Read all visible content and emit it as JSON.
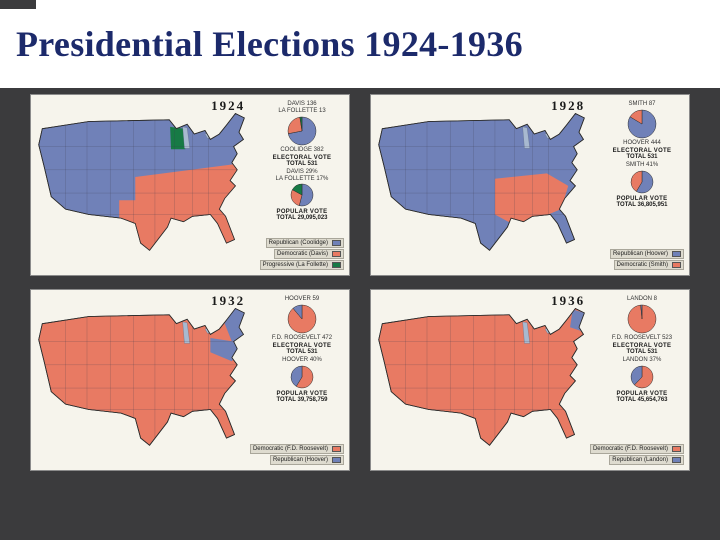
{
  "slide": {
    "title": "Presidential Elections 1924-1936",
    "title_color": "#1c2a6b",
    "background": "#3b3b3d"
  },
  "colors": {
    "republican": "#7081b8",
    "democratic": "#e87a63",
    "progressive": "#177a45",
    "panel_background": "#f6f4ec"
  },
  "panels": [
    {
      "year": "1924",
      "base_party": "republican",
      "regions": [
        {
          "shape": "south-1924",
          "party": "democratic"
        },
        {
          "shape": "wisconsin",
          "party": "progressive"
        }
      ],
      "electoral": {
        "heading": "ELECTORAL VOTE",
        "total": "TOTAL 531",
        "slices": [
          {
            "label": "COOLIDGE",
            "value": 382,
            "party": "republican"
          },
          {
            "label": "DAVIS",
            "value": 136,
            "party": "democratic"
          },
          {
            "label": "LA FOLLETTE",
            "value": 13,
            "party": "progressive"
          }
        ]
      },
      "popular": {
        "heading": "POPULAR VOTE",
        "total": "TOTAL 29,095,023",
        "slices": [
          {
            "label": "COOLIDGE",
            "value": "54%",
            "party": "republican"
          },
          {
            "label": "DAVIS",
            "value": "29%",
            "party": "democratic"
          },
          {
            "label": "LA FOLLETTE",
            "value": "17%",
            "party": "progressive"
          }
        ]
      },
      "legend": [
        {
          "label": "Republican (Coolidge)",
          "party": "republican"
        },
        {
          "label": "Democratic (Davis)",
          "party": "democratic"
        },
        {
          "label": "Progressive (La Follette)",
          "party": "progressive"
        }
      ]
    },
    {
      "year": "1928",
      "base_party": "republican",
      "regions": [
        {
          "shape": "south-1928",
          "party": "democratic"
        }
      ],
      "electoral": {
        "heading": "ELECTORAL VOTE",
        "total": "TOTAL 531",
        "slices": [
          {
            "label": "HOOVER",
            "value": 444,
            "party": "republican"
          },
          {
            "label": "SMITH",
            "value": 87,
            "party": "democratic"
          }
        ]
      },
      "popular": {
        "heading": "POPULAR VOTE",
        "total": "TOTAL 36,805,951",
        "slices": [
          {
            "label": "HOOVER",
            "value": "58%",
            "party": "republican"
          },
          {
            "label": "SMITH",
            "value": "41%",
            "party": "democratic"
          }
        ]
      },
      "legend": [
        {
          "label": "Republican (Hoover)",
          "party": "republican"
        },
        {
          "label": "Democratic (Smith)",
          "party": "democratic"
        }
      ]
    },
    {
      "year": "1932",
      "base_party": "democratic",
      "regions": [
        {
          "shape": "new-england-1932",
          "party": "republican"
        },
        {
          "shape": "mid-atlantic-1932",
          "party": "republican"
        }
      ],
      "electoral": {
        "heading": "ELECTORAL VOTE",
        "total": "TOTAL 531",
        "slices": [
          {
            "label": "F.D. ROOSEVELT",
            "value": 472,
            "party": "democratic"
          },
          {
            "label": "HOOVER",
            "value": 59,
            "party": "republican"
          }
        ]
      },
      "popular": {
        "heading": "POPULAR VOTE",
        "total": "TOTAL 39,758,759",
        "slices": [
          {
            "label": "F.D. ROOSEVELT",
            "value": "57%",
            "party": "democratic"
          },
          {
            "label": "HOOVER",
            "value": "40%",
            "party": "republican"
          }
        ]
      },
      "legend": [
        {
          "label": "Democratic (F.D. Roosevelt)",
          "party": "democratic"
        },
        {
          "label": "Republican (Hoover)",
          "party": "republican"
        }
      ]
    },
    {
      "year": "1936",
      "base_party": "democratic",
      "regions": [
        {
          "shape": "maine-vermont-1936",
          "party": "republican"
        }
      ],
      "electoral": {
        "heading": "ELECTORAL VOTE",
        "total": "TOTAL 531",
        "slices": [
          {
            "label": "F.D. ROOSEVELT",
            "value": 523,
            "party": "democratic"
          },
          {
            "label": "LANDON",
            "value": 8,
            "party": "republican"
          }
        ]
      },
      "popular": {
        "heading": "POPULAR VOTE",
        "total": "TOTAL 45,654,763",
        "slices": [
          {
            "label": "F.D. ROOSEVELT",
            "value": "61%",
            "party": "democratic"
          },
          {
            "label": "LANDON",
            "value": "37%",
            "party": "republican"
          }
        ]
      },
      "legend": [
        {
          "label": "Democratic (F.D. Roosevelt)",
          "party": "democratic"
        },
        {
          "label": "Republican (Landon)",
          "party": "republican"
        }
      ]
    }
  ],
  "chart_data": [
    {
      "type": "pie",
      "title": "1924 Electoral Vote",
      "total_label": "TOTAL 531",
      "labels": [
        "Coolidge (Republican)",
        "Davis (Democratic)",
        "La Follette (Progressive)"
      ],
      "values": [
        382,
        136,
        13
      ],
      "colors": [
        "#7081b8",
        "#e87a63",
        "#177a45"
      ]
    },
    {
      "type": "pie",
      "title": "1924 Popular Vote",
      "total_label": "TOTAL 29,095,023",
      "labels": [
        "Coolidge (Republican)",
        "Davis (Democratic)",
        "La Follette (Progressive)"
      ],
      "values": [
        54,
        29,
        17
      ],
      "unit": "%"
    },
    {
      "type": "pie",
      "title": "1928 Electoral Vote",
      "total_label": "TOTAL 531",
      "labels": [
        "Hoover (Republican)",
        "Smith (Democratic)"
      ],
      "values": [
        444,
        87
      ],
      "colors": [
        "#7081b8",
        "#e87a63"
      ]
    },
    {
      "type": "pie",
      "title": "1928 Popular Vote",
      "total_label": "TOTAL 36,805,951",
      "labels": [
        "Hoover (Republican)",
        "Smith (Democratic)"
      ],
      "values": [
        58,
        41
      ],
      "unit": "%"
    },
    {
      "type": "pie",
      "title": "1932 Electoral Vote",
      "total_label": "TOTAL 531",
      "labels": [
        "F.D. Roosevelt (Democratic)",
        "Hoover (Republican)"
      ],
      "values": [
        472,
        59
      ],
      "colors": [
        "#e87a63",
        "#7081b8"
      ]
    },
    {
      "type": "pie",
      "title": "1932 Popular Vote",
      "total_label": "TOTAL 39,758,759",
      "labels": [
        "F.D. Roosevelt (Democratic)",
        "Hoover (Republican)"
      ],
      "values": [
        57,
        40
      ],
      "unit": "%"
    },
    {
      "type": "pie",
      "title": "1936 Electoral Vote",
      "total_label": "TOTAL 531",
      "labels": [
        "F.D. Roosevelt (Democratic)",
        "Landon (Republican)"
      ],
      "values": [
        523,
        8
      ],
      "colors": [
        "#e87a63",
        "#7081b8"
      ]
    },
    {
      "type": "pie",
      "title": "1936 Popular Vote",
      "total_label": "TOTAL 45,654,763",
      "labels": [
        "F.D. Roosevelt (Democratic)",
        "Landon (Republican)"
      ],
      "values": [
        61,
        37
      ],
      "unit": "%"
    }
  ]
}
